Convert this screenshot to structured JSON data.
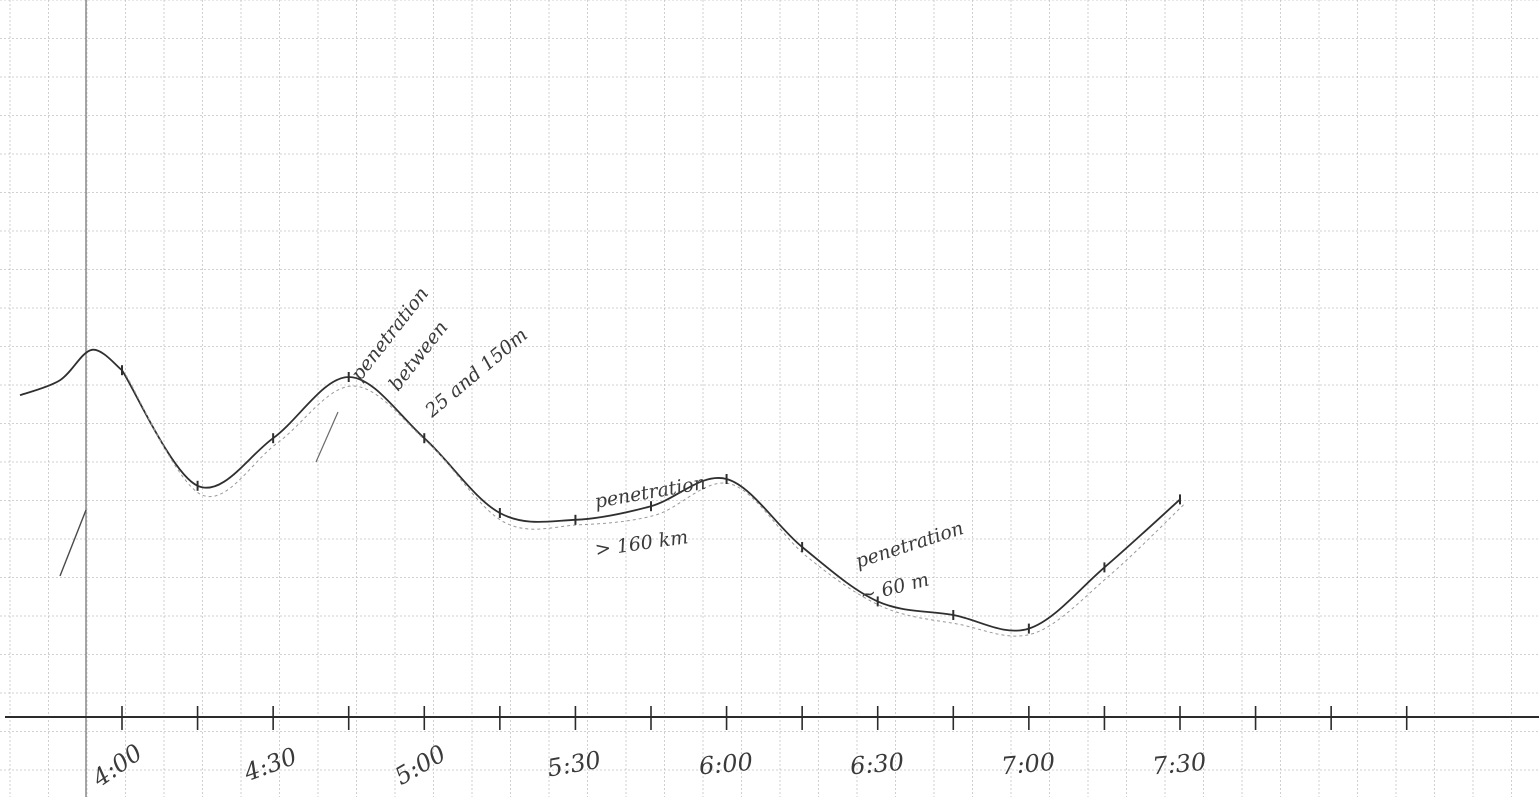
{
  "chart_data": {
    "type": "line",
    "title": "",
    "xlabel": "",
    "ylabel": "",
    "x_ticks": [
      {
        "t": 240,
        "label": "4:00"
      },
      {
        "t": 270,
        "label": "4:30"
      },
      {
        "t": 300,
        "label": "5:00"
      },
      {
        "t": 330,
        "label": "5:30"
      },
      {
        "t": 360,
        "label": "6:00"
      },
      {
        "t": 390,
        "label": "6:30"
      },
      {
        "t": 420,
        "label": "7:00"
      },
      {
        "t": 450,
        "label": "7:30"
      }
    ],
    "xlim": [
      225,
      495
    ],
    "ylim": [
      0,
      10
    ],
    "grid": true,
    "series": [
      {
        "values": [
          {
            "t": 240,
            "y": 5.1
          },
          {
            "t": 255,
            "y": 3.4
          },
          {
            "t": 270,
            "y": 4.1
          },
          {
            "t": 285,
            "y": 5.0
          },
          {
            "t": 300,
            "y": 4.1
          },
          {
            "t": 315,
            "y": 3.0
          },
          {
            "t": 330,
            "y": 2.9
          },
          {
            "t": 345,
            "y": 3.1
          },
          {
            "t": 360,
            "y": 3.5
          },
          {
            "t": 375,
            "y": 2.5
          },
          {
            "t": 390,
            "y": 1.7
          },
          {
            "t": 405,
            "y": 1.5
          },
          {
            "t": 420,
            "y": 1.3
          },
          {
            "t": 435,
            "y": 2.2
          },
          {
            "t": 450,
            "y": 3.2
          }
        ]
      }
    ],
    "annotations": [
      {
        "id": "a1",
        "lines": [
          "penetration",
          "between",
          "25 and 150m"
        ]
      },
      {
        "id": "a2",
        "lines": [
          "penetration",
          "> 160 km"
        ]
      },
      {
        "id": "a3",
        "lines": [
          "penetration",
          "~ 60 m"
        ]
      }
    ]
  }
}
